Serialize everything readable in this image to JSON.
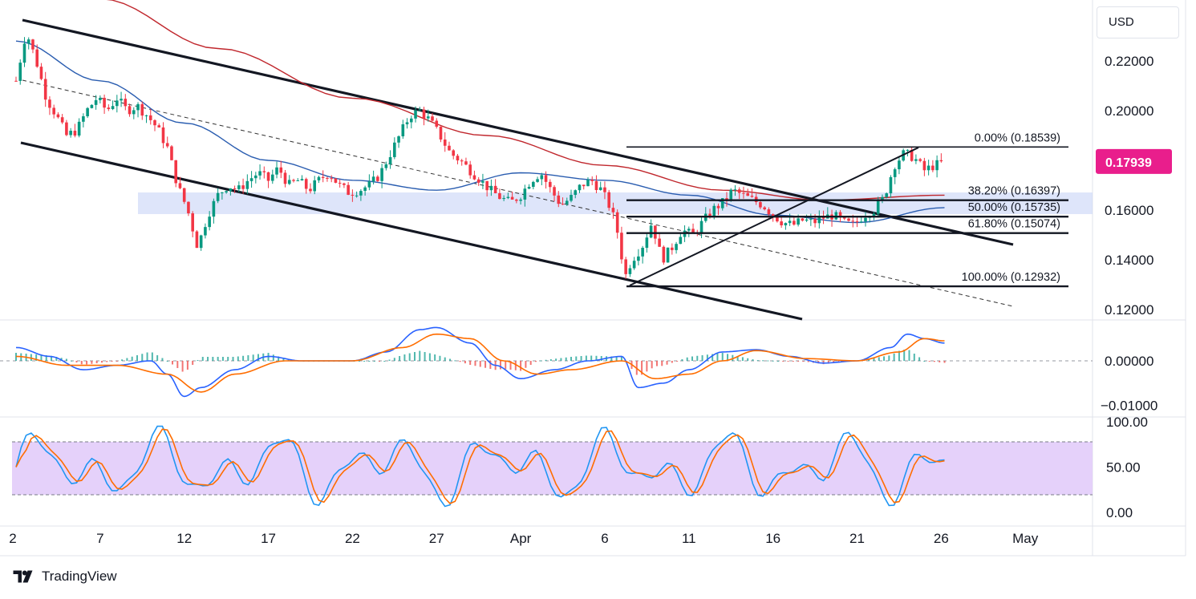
{
  "currency": "USD",
  "brand": "TradingView",
  "last_price": {
    "label": "0.17939",
    "value": 0.17939,
    "color": "#e91e8c"
  },
  "price_axis": [
    {
      "label": "0.22000",
      "value": 0.22
    },
    {
      "label": "0.20000",
      "value": 0.2
    },
    {
      "label": "0.18000",
      "value": 0.18
    },
    {
      "label": "0.16000",
      "value": 0.16
    },
    {
      "label": "0.14000",
      "value": 0.14
    },
    {
      "label": "0.12000",
      "value": 0.12
    }
  ],
  "macd_axis": [
    {
      "label": "0.00000",
      "value": 0.0
    },
    {
      "label": "−0.01000",
      "value": -0.01
    }
  ],
  "stoch_axis": [
    {
      "label": "100.00",
      "value": 100
    },
    {
      "label": "50.00",
      "value": 50
    },
    {
      "label": "0.00",
      "value": 0
    }
  ],
  "time_axis": [
    {
      "label": "2",
      "day": 0
    },
    {
      "label": "7",
      "day": 5
    },
    {
      "label": "12",
      "day": 10
    },
    {
      "label": "17",
      "day": 15
    },
    {
      "label": "22",
      "day": 20
    },
    {
      "label": "27",
      "day": 25
    },
    {
      "label": "Apr",
      "day": 30
    },
    {
      "label": "6",
      "day": 35
    },
    {
      "label": "11",
      "day": 40
    },
    {
      "label": "16",
      "day": 45
    },
    {
      "label": "21",
      "day": 50
    },
    {
      "label": "26",
      "day": 55
    },
    {
      "label": "May",
      "day": 60
    }
  ],
  "fib_levels": [
    {
      "label": "0.00% (0.18539)",
      "value": 0.18539
    },
    {
      "label": "38.20% (0.16397)",
      "value": 0.16397
    },
    {
      "label": "50.00% (0.15735)",
      "value": 0.15735
    },
    {
      "label": "61.80% (0.15074)",
      "value": 0.15074
    },
    {
      "label": "100.00% (0.12932)",
      "value": 0.12932
    }
  ],
  "colors": {
    "up": "#089981",
    "down": "#f23645",
    "ma_fast": "#2a5db0",
    "ma_slow": "#c0272d",
    "macd_line": "#2962ff",
    "signal_line": "#ff6d00",
    "zone": "#c8d3f7",
    "stoch_band": "#e1c9f9",
    "stoch_k": "#2196f3",
    "stoch_d": "#ff6d00"
  },
  "chart_data": {
    "type": "line",
    "x_unit": "day index (0 = Mar 2)",
    "close": [
      [
        0,
        0.212
      ],
      [
        0.6,
        0.232
      ],
      [
        1.2,
        0.22
      ],
      [
        1.8,
        0.205
      ],
      [
        2.4,
        0.198
      ],
      [
        3,
        0.19
      ],
      [
        3.6,
        0.192
      ],
      [
        4.2,
        0.2
      ],
      [
        4.8,
        0.205
      ],
      [
        5.4,
        0.2
      ],
      [
        6,
        0.205
      ],
      [
        6.6,
        0.2
      ],
      [
        7.2,
        0.202
      ],
      [
        7.8,
        0.198
      ],
      [
        8.4,
        0.193
      ],
      [
        9,
        0.185
      ],
      [
        9.6,
        0.17
      ],
      [
        10.2,
        0.16
      ],
      [
        10.8,
        0.145
      ],
      [
        11.4,
        0.158
      ],
      [
        12,
        0.166
      ],
      [
        12.6,
        0.17
      ],
      [
        13.2,
        0.168
      ],
      [
        13.8,
        0.172
      ],
      [
        14.4,
        0.175
      ],
      [
        15,
        0.172
      ],
      [
        15.6,
        0.177
      ],
      [
        16.2,
        0.17
      ],
      [
        16.8,
        0.172
      ],
      [
        17.4,
        0.168
      ],
      [
        18,
        0.172
      ],
      [
        18.6,
        0.175
      ],
      [
        19.2,
        0.17
      ],
      [
        19.8,
        0.167
      ],
      [
        20.4,
        0.168
      ],
      [
        21,
        0.17
      ],
      [
        21.6,
        0.174
      ],
      [
        22.2,
        0.182
      ],
      [
        22.8,
        0.19
      ],
      [
        23.4,
        0.198
      ],
      [
        24,
        0.2
      ],
      [
        24.6,
        0.196
      ],
      [
        25.2,
        0.19
      ],
      [
        25.8,
        0.183
      ],
      [
        26.4,
        0.18
      ],
      [
        27,
        0.176
      ],
      [
        27.6,
        0.172
      ],
      [
        28.2,
        0.168
      ],
      [
        28.8,
        0.165
      ],
      [
        29.4,
        0.163
      ],
      [
        30,
        0.166
      ],
      [
        30.6,
        0.172
      ],
      [
        31.2,
        0.175
      ],
      [
        31.8,
        0.168
      ],
      [
        32.4,
        0.162
      ],
      [
        33,
        0.165
      ],
      [
        33.6,
        0.17
      ],
      [
        34.2,
        0.172
      ],
      [
        34.8,
        0.168
      ],
      [
        35.4,
        0.16
      ],
      [
        35.8,
        0.15
      ],
      [
        36.2,
        0.133
      ],
      [
        36.6,
        0.14
      ],
      [
        37.2,
        0.145
      ],
      [
        37.8,
        0.155
      ],
      [
        38.4,
        0.14
      ],
      [
        39,
        0.145
      ],
      [
        39.6,
        0.152
      ],
      [
        40.2,
        0.15
      ],
      [
        40.8,
        0.155
      ],
      [
        41.4,
        0.16
      ],
      [
        42,
        0.163
      ],
      [
        42.6,
        0.168
      ],
      [
        43.2,
        0.166
      ],
      [
        43.8,
        0.164
      ],
      [
        44.4,
        0.162
      ],
      [
        45,
        0.158
      ],
      [
        45.6,
        0.155
      ],
      [
        46.2,
        0.154
      ],
      [
        46.8,
        0.156
      ],
      [
        47.4,
        0.155
      ],
      [
        48,
        0.157
      ],
      [
        48.6,
        0.158
      ],
      [
        49.2,
        0.155
      ],
      [
        49.8,
        0.154
      ],
      [
        50.4,
        0.158
      ],
      [
        51,
        0.16
      ],
      [
        51.6,
        0.165
      ],
      [
        52.2,
        0.178
      ],
      [
        52.8,
        0.183
      ],
      [
        53.4,
        0.181
      ],
      [
        54,
        0.176
      ],
      [
        54.6,
        0.178
      ],
      [
        55.2,
        0.17939
      ]
    ],
    "volume_ma_fast_label": "",
    "volume_ma_slow_label": ""
  }
}
